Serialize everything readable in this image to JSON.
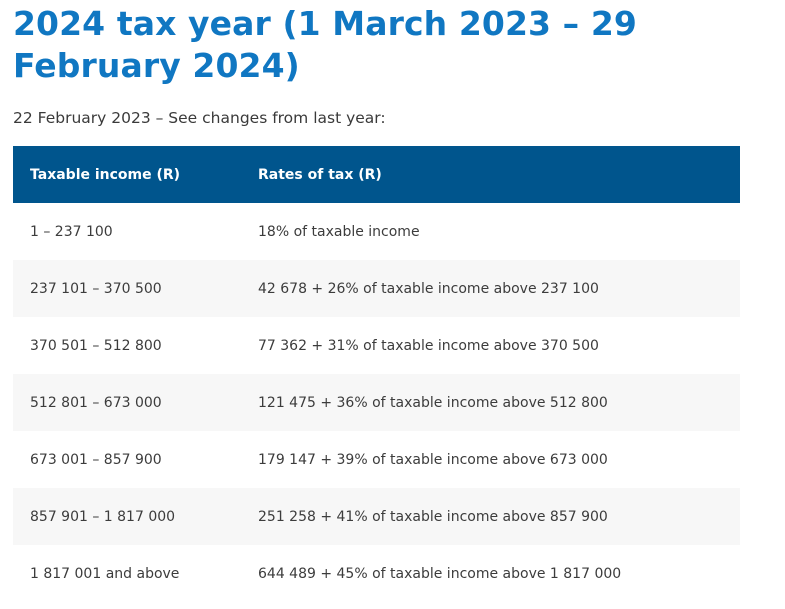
{
  "header": {
    "title": "2024 tax year (1 March 2023 – 29 February 2024)",
    "subtitle": "22 February 2023 – See changes from last year:"
  },
  "table": {
    "columns": [
      "Taxable income (R)",
      "Rates of tax (R)"
    ],
    "rows": [
      [
        "1 – 237 100",
        "18% of taxable income"
      ],
      [
        "237 101 – 370 500",
        "42 678 + 26% of taxable income above 237 100"
      ],
      [
        "370 501 – 512 800",
        "77 362 + 31% of taxable income above 370 500"
      ],
      [
        "512 801 – 673 000",
        "121 475 + 36% of taxable income above 512 800"
      ],
      [
        "673 001 – 857 900",
        "179 147 + 39% of taxable income above 673 000"
      ],
      [
        "857 901 – 1 817 000",
        "251 258 + 41% of taxable income above 857 900"
      ],
      [
        "1 817 001 and above",
        "644 489 + 45% of taxable income above 1 817 000"
      ]
    ]
  },
  "colors": {
    "title": "#1077c2",
    "header_bg": "#00558d",
    "alt_row_bg": "#f7f7f7"
  }
}
